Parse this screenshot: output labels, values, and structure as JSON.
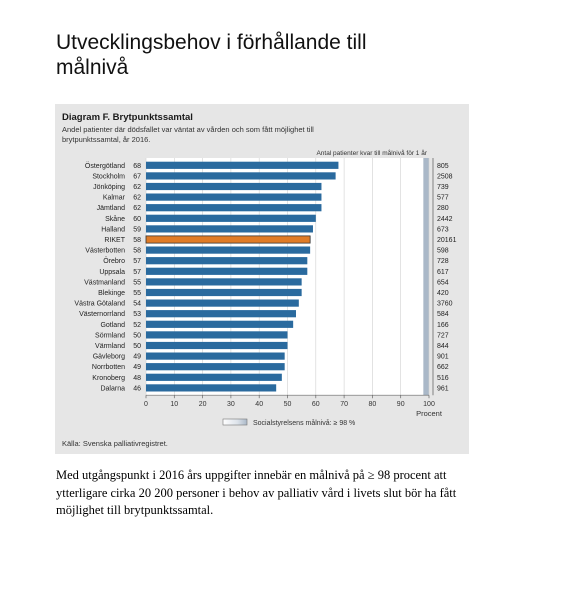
{
  "slide": {
    "title": "Utvecklingsbehov i förhållande till målnivå",
    "body": "Med utgångspunkt i 2016 års uppgifter innebär en målnivå på ≥ 98 procent att ytterligare cirka 20 200 personer i behov av palliativ vård i livets slut bör ha fått möjlighet till brytpunktssamtal."
  },
  "chart_data": {
    "type": "bar",
    "orientation": "horizontal",
    "title": "Diagram F. Brytpunktssamtal",
    "subtitle_lines": [
      "Andel patienter där dödsfallet var väntat av vården och som fått möjlighet till",
      "brytpunktssamtal, år 2016."
    ],
    "count_header": "Antal patienter kvar till målnivå för 1 år",
    "categories": [
      "Östergötland",
      "Stockholm",
      "Jönköping",
      "Kalmar",
      "Jämtland",
      "Skåne",
      "Halland",
      "RIKET",
      "Västerbotten",
      "Örebro",
      "Uppsala",
      "Västmanland",
      "Blekinge",
      "Västra Götaland",
      "Västernorrland",
      "Gotland",
      "Sörmland",
      "Värmland",
      "Gävleborg",
      "Norrbotten",
      "Kronoberg",
      "Dalarna"
    ],
    "values": [
      68,
      67,
      62,
      62,
      62,
      60,
      59,
      58,
      58,
      57,
      57,
      55,
      55,
      54,
      53,
      52,
      50,
      50,
      49,
      49,
      48,
      46
    ],
    "counts": [
      "805",
      "2508",
      "739",
      "577",
      "280",
      "2442",
      "673",
      "20161",
      "598",
      "728",
      "617",
      "654",
      "420",
      "3760",
      "584",
      "166",
      "727",
      "844",
      "901",
      "662",
      "516",
      "961"
    ],
    "highlight": "RIKET",
    "xlim": [
      0,
      100
    ],
    "xticks": [
      "0",
      "10",
      "20",
      "30",
      "40",
      "50",
      "60",
      "70",
      "80",
      "90",
      "100"
    ],
    "xlabel": "Procent",
    "legend_label": "Socialstyrelsens målnivå: ≥ 98 %",
    "source": "Källa: Svenska palliativregistret.",
    "colors": {
      "bar": "#2a6a9e",
      "highlight": "#e07b26",
      "panel": "#e6e6e6",
      "plot": "#ffffff",
      "grid": "#d0d0d0",
      "target": "#aab8c8"
    }
  }
}
